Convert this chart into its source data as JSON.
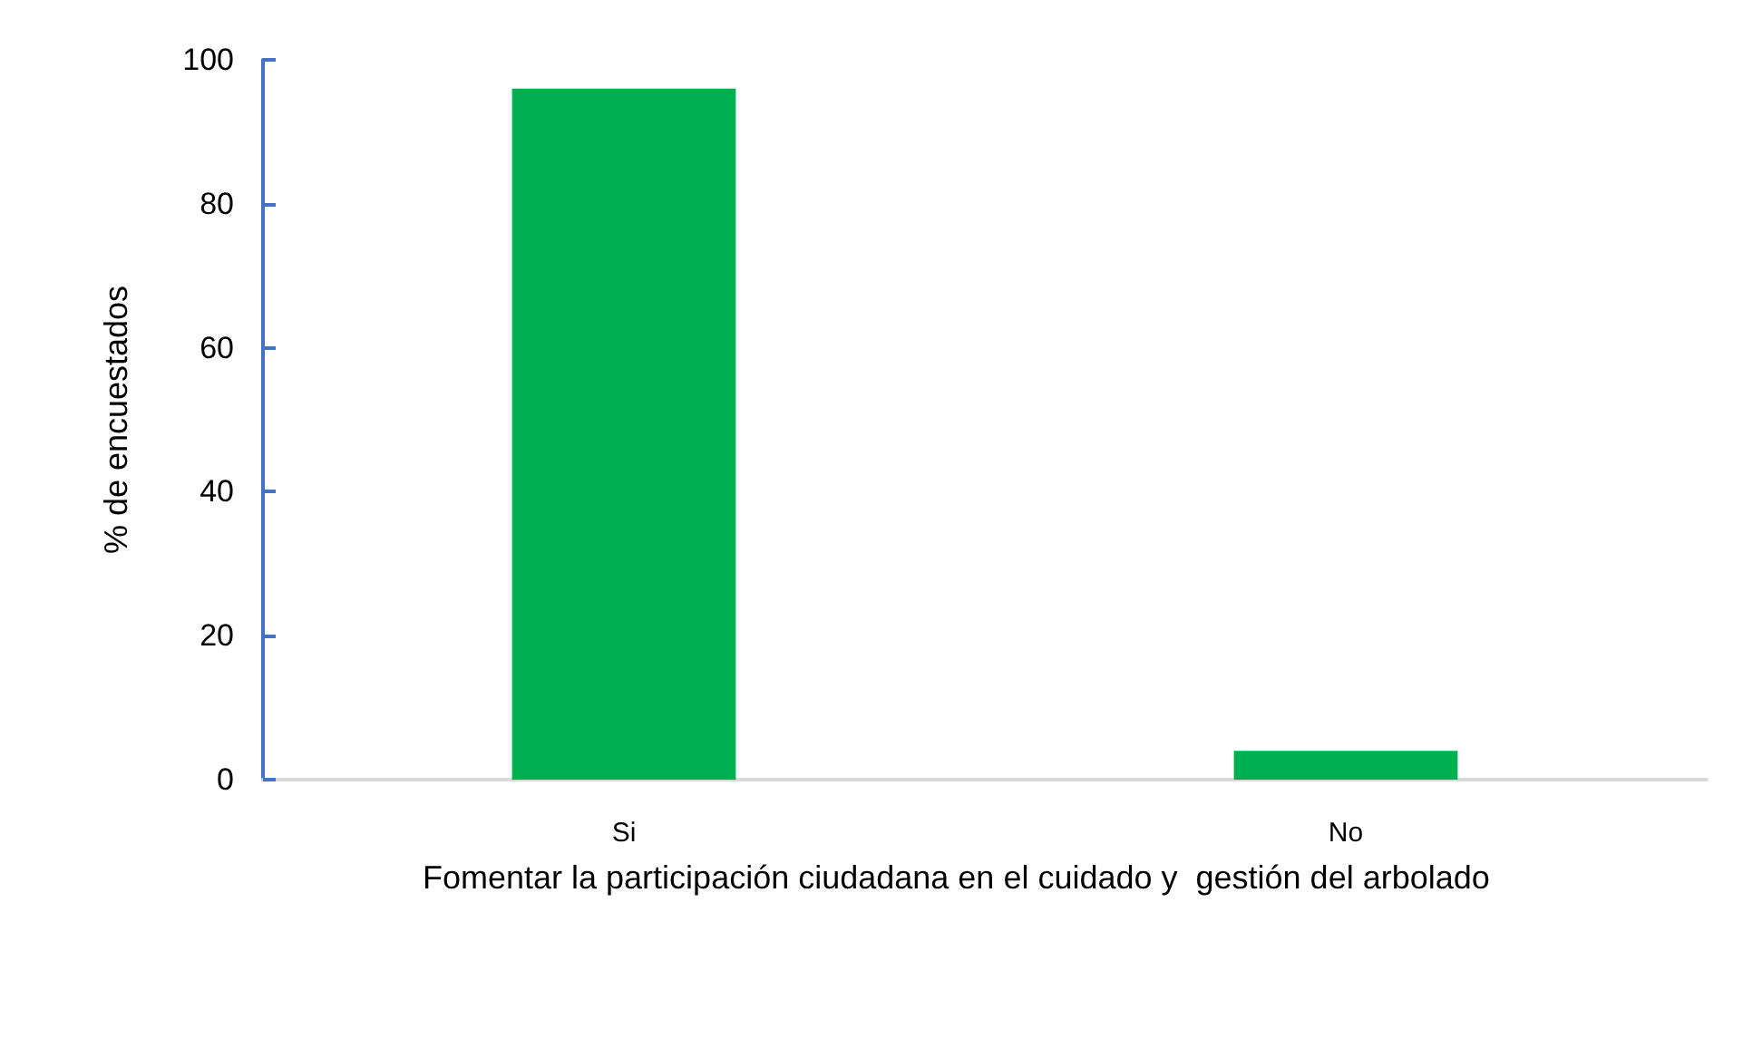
{
  "chart_data": {
    "type": "bar",
    "xlabel": "Fomentar la participación ciudadana en el cuidado y  gestión del arbolado",
    "ylabel": "% de encuestados",
    "categories": [
      "Si",
      "No"
    ],
    "values": [
      96,
      4
    ],
    "color": "#00b050",
    "ylim": [
      0,
      100
    ],
    "yticks": [
      0,
      20,
      40,
      60,
      80,
      100
    ],
    "grid": false
  }
}
